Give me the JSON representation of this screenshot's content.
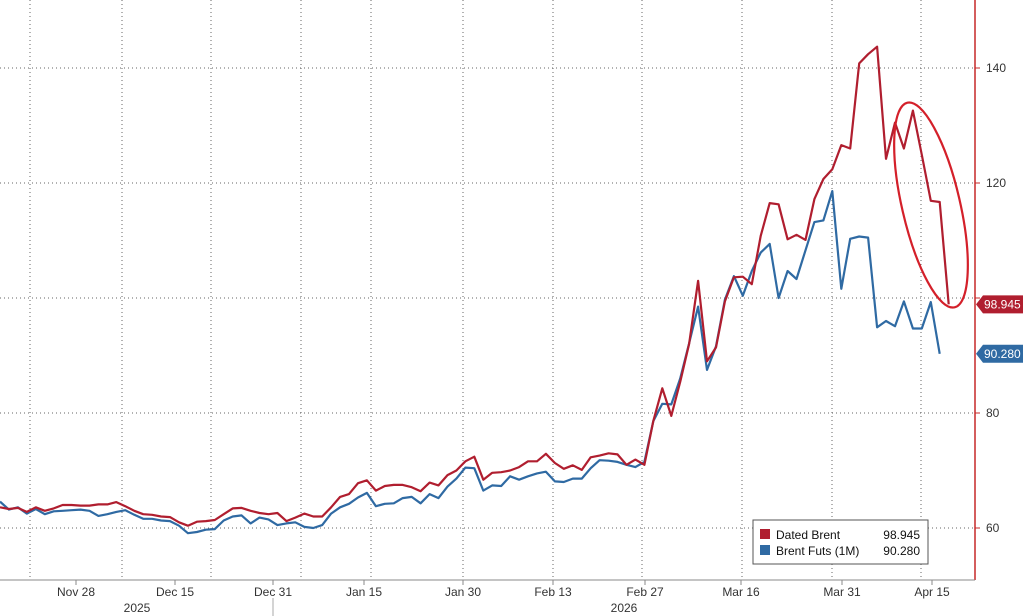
{
  "colors": {
    "dated_brent": "#b01e2f",
    "brent_futs": "#2f6aa3",
    "annotation": "#d4202a",
    "grid": "#666666",
    "axis": "#c62828"
  },
  "chart_data": {
    "type": "line",
    "title": "",
    "xlabel": "",
    "ylabel": "",
    "ylim": [
      50,
      155
    ],
    "x_tick_labels": [
      "Nov 28",
      "Dec 15",
      "Dec 31",
      "Jan 15",
      "Jan 30",
      "Feb 13",
      "Feb 27",
      "Mar 16",
      "Mar 31",
      "Apr 15"
    ],
    "year_labels": [
      "2025",
      "2026"
    ],
    "y_ticks": [
      60,
      80,
      100,
      120,
      140
    ],
    "y_tick_labels": [
      "60",
      "80",
      "",
      "120",
      "140"
    ],
    "grid": true,
    "legend_position": "bottom-right",
    "last_value_badges": [
      "98.945",
      "90.280"
    ],
    "annotation": "red ellipse around the latest decline of Dated Brent",
    "series": [
      {
        "name": "Dated Brent",
        "color": "#b01e2f",
        "last_value": "98.945",
        "values": [
          63.6,
          63.3,
          63.5,
          62.8,
          63.6,
          63.0,
          63.4,
          64.0,
          64.0,
          63.9,
          63.9,
          64.1,
          64.1,
          64.5,
          63.8,
          63.0,
          62.4,
          62.3,
          62.0,
          61.9,
          61.0,
          60.4,
          61.1,
          61.2,
          61.4,
          62.4,
          63.4,
          63.5,
          63.0,
          62.6,
          62.4,
          62.6,
          61.2,
          61.8,
          62.5,
          62.0,
          62.0,
          63.6,
          65.4,
          65.9,
          67.8,
          68.3,
          66.5,
          67.3,
          67.5,
          67.5,
          67.1,
          66.4,
          67.9,
          67.4,
          69.2,
          70.0,
          71.6,
          72.4,
          68.4,
          69.6,
          69.7,
          70.0,
          70.6,
          71.6,
          71.6,
          72.9,
          71.3,
          70.3,
          70.9,
          70.1,
          72.3,
          72.6,
          73.0,
          72.8,
          71.0,
          71.9,
          71.0,
          78.6,
          84.3,
          79.5,
          85.4,
          92.0,
          103.0,
          89.0,
          91.4,
          99.4,
          103.6,
          103.7,
          102.4,
          110.8,
          116.5,
          116.3,
          110.2,
          111.0,
          110.1,
          117.2,
          120.7,
          122.4,
          126.6,
          126.0,
          140.8,
          142.4,
          143.7,
          124.2,
          130.5,
          126.0,
          132.6,
          124.9,
          116.9,
          116.7,
          98.9
        ]
      },
      {
        "name": "Brent Futs (1M)",
        "color": "#2f6aa3",
        "last_value": "90.280",
        "values": [
          64.6,
          63.2,
          63.6,
          62.5,
          63.3,
          62.4,
          62.9,
          63.0,
          63.1,
          63.2,
          63.0,
          62.1,
          62.4,
          62.8,
          63.1,
          62.3,
          61.6,
          61.6,
          61.3,
          61.2,
          60.4,
          59.1,
          59.3,
          59.7,
          59.8,
          61.3,
          62.0,
          62.2,
          60.8,
          61.8,
          61.5,
          60.5,
          60.8,
          61.0,
          60.2,
          60.0,
          60.5,
          62.5,
          63.6,
          64.2,
          65.3,
          66.1,
          63.8,
          64.2,
          64.3,
          65.2,
          65.4,
          64.3,
          65.9,
          65.2,
          67.2,
          68.6,
          70.5,
          70.4,
          66.5,
          67.4,
          67.3,
          69.0,
          68.4,
          69.0,
          69.5,
          69.8,
          68.1,
          68.0,
          68.6,
          68.6,
          70.4,
          71.8,
          71.7,
          71.5,
          71.0,
          70.6,
          71.5,
          78.6,
          81.6,
          81.5,
          86.0,
          92.1,
          98.5,
          87.5,
          91.6,
          99.7,
          103.8,
          100.4,
          104.7,
          107.9,
          109.4,
          100.0,
          104.7,
          103.3,
          108.3,
          113.2,
          113.5,
          118.6,
          101.6,
          110.3,
          110.7,
          110.5,
          94.9,
          96.0,
          95.1,
          99.4,
          94.7,
          94.7,
          99.3,
          90.3
        ]
      }
    ]
  }
}
